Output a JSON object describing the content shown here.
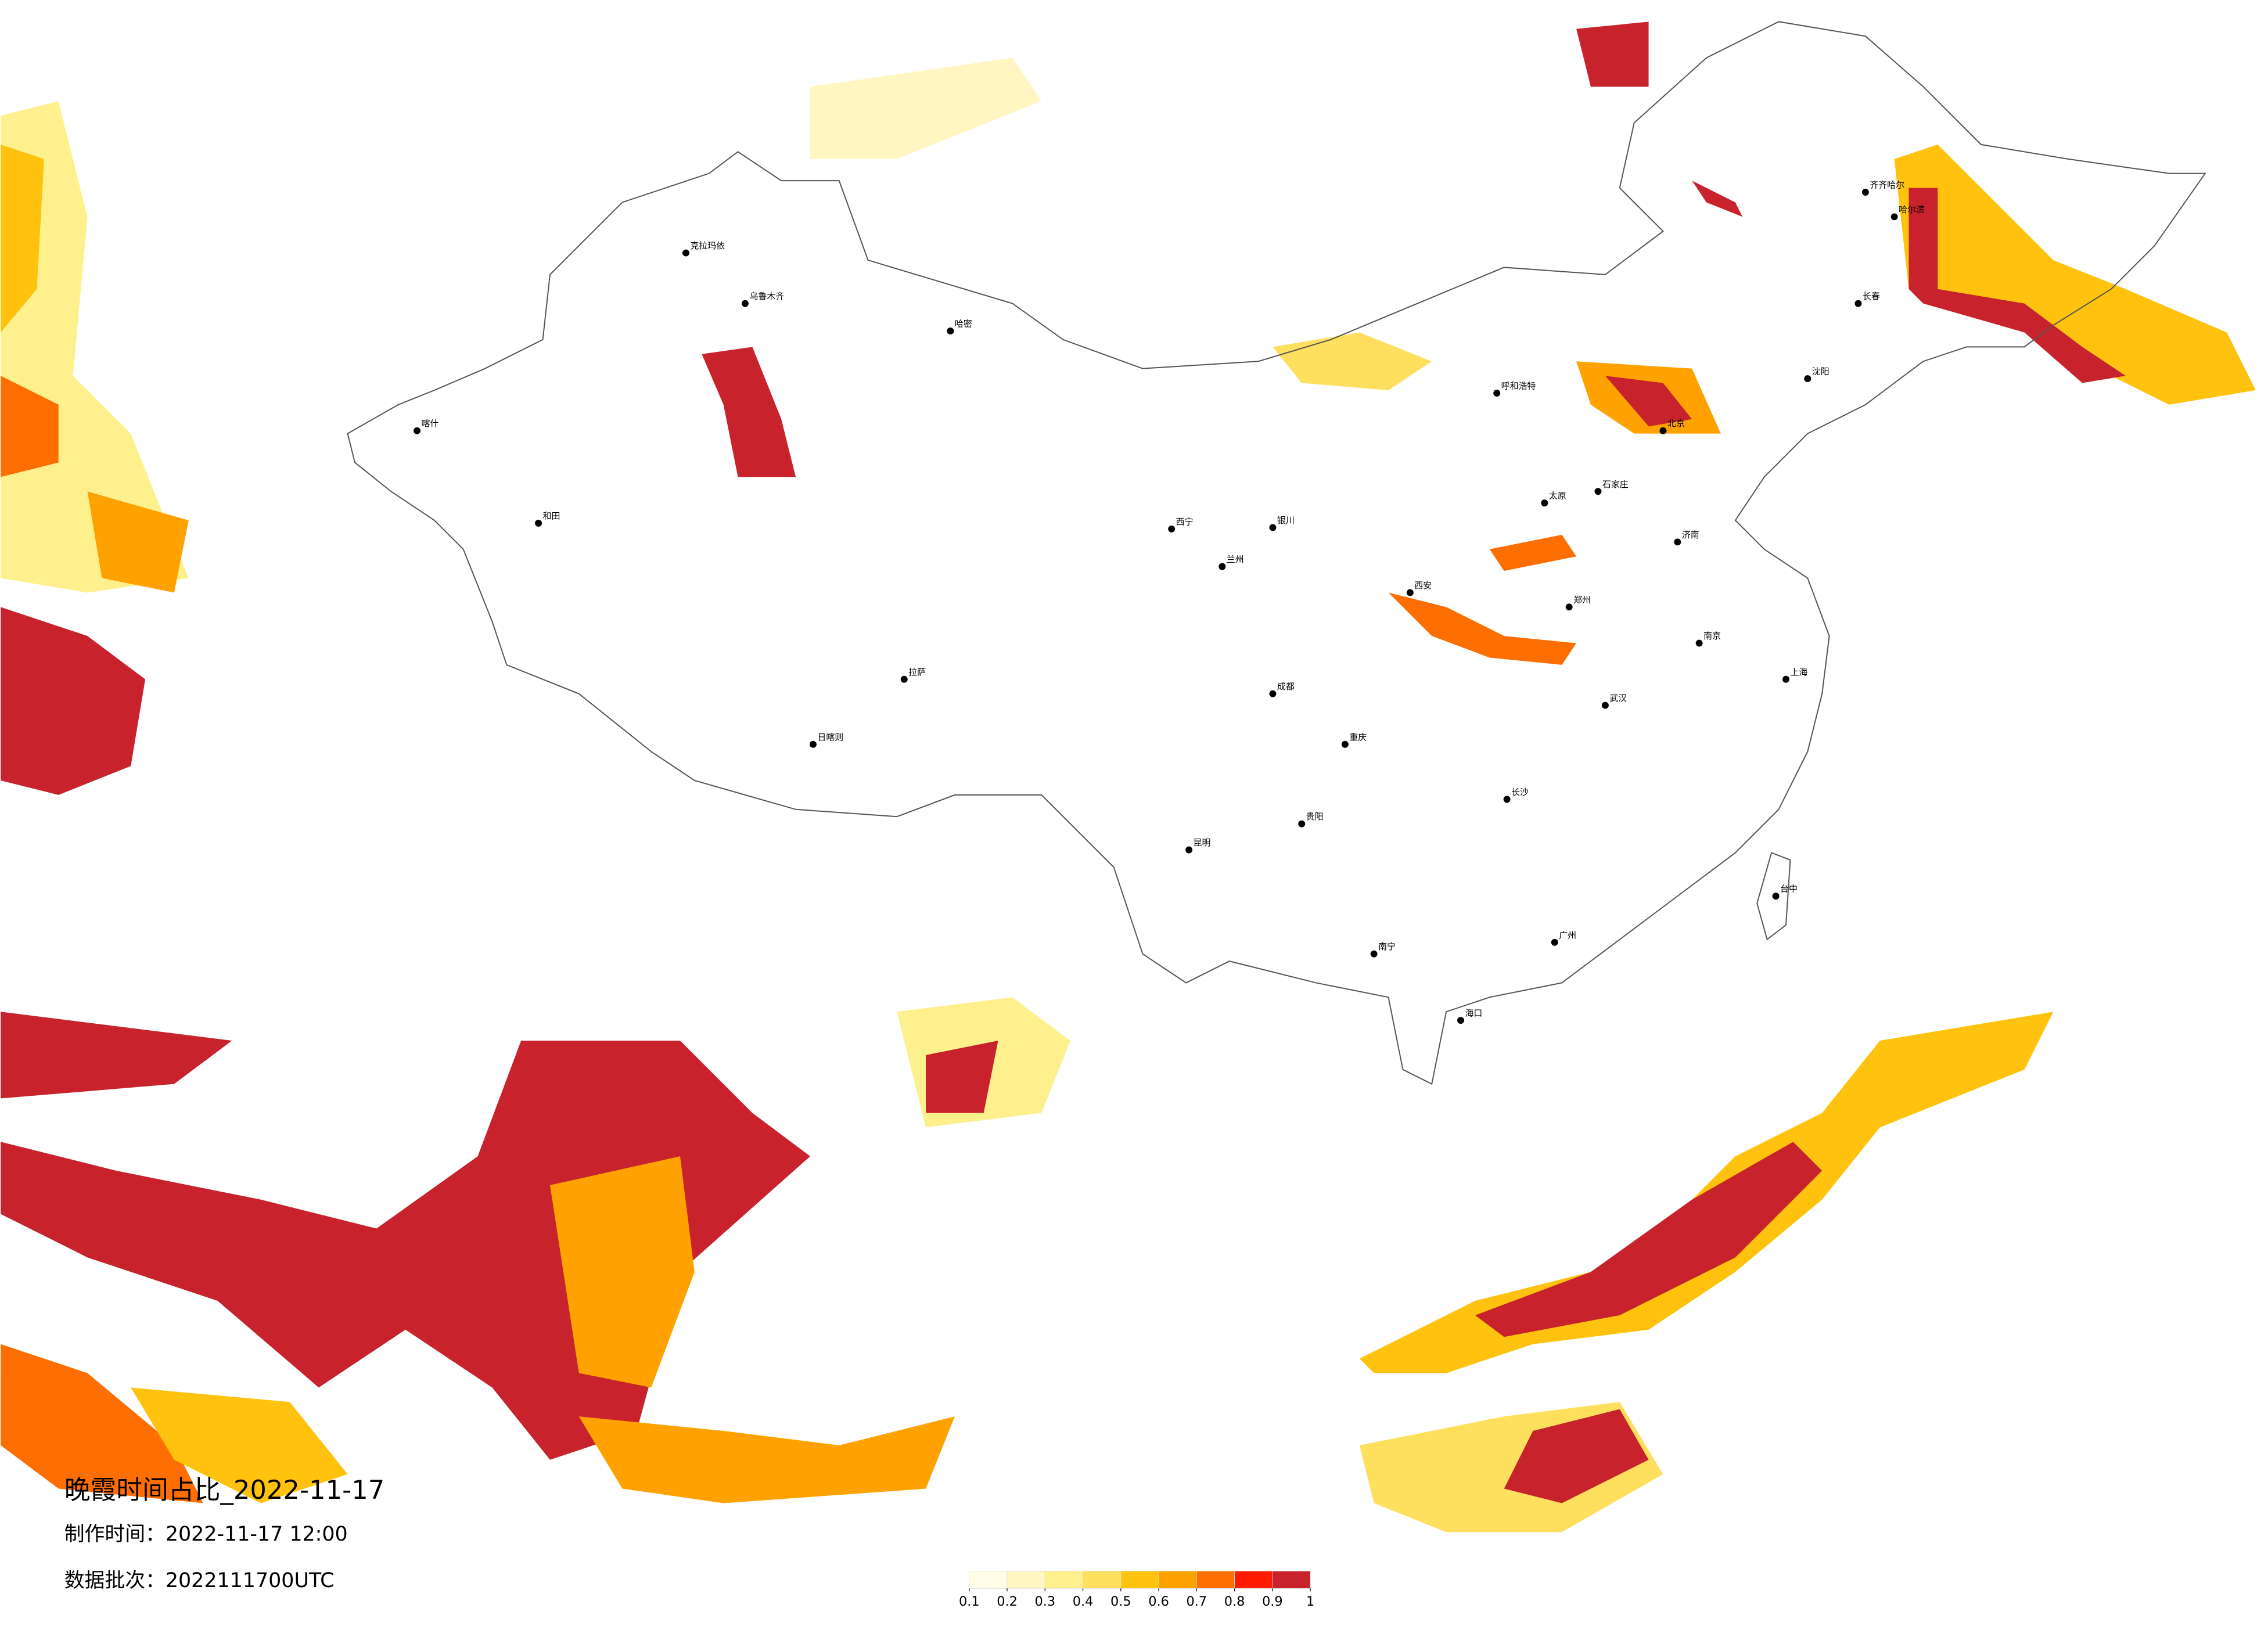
{
  "header": {
    "title": "晚霞时间占比_2022-11-17",
    "made_time": "制作时间：2022-11-17 12:00",
    "batch": "数据批次：2022111700UTC"
  },
  "legend": {
    "ticks": [
      0.1,
      0.2,
      0.3,
      0.4,
      0.5,
      0.6,
      0.7,
      0.8,
      0.9,
      1
    ],
    "colors": [
      "#fffde6",
      "#fff6c2",
      "#fff08e",
      "#ffdf5e",
      "#ffc20e",
      "#ffa200",
      "#ff6e00",
      "#ff1a00",
      "#c8232c"
    ]
  },
  "cities": [
    "乌鲁木齐",
    "和田",
    "克拉玛依",
    "喀什",
    "哈密",
    "拉萨",
    "日喀则",
    "西宁",
    "兰州",
    "银川",
    "呼和浩特",
    "北京",
    "石家庄",
    "太原",
    "郑州",
    "西安",
    "成都",
    "重庆",
    "昆明",
    "贵阳",
    "南宁",
    "广州",
    "长沙",
    "武汉",
    "南京",
    "上海",
    "济南",
    "沈阳",
    "长春",
    "哈尔滨",
    "齐齐哈尔",
    "海口",
    "台中"
  ]
}
